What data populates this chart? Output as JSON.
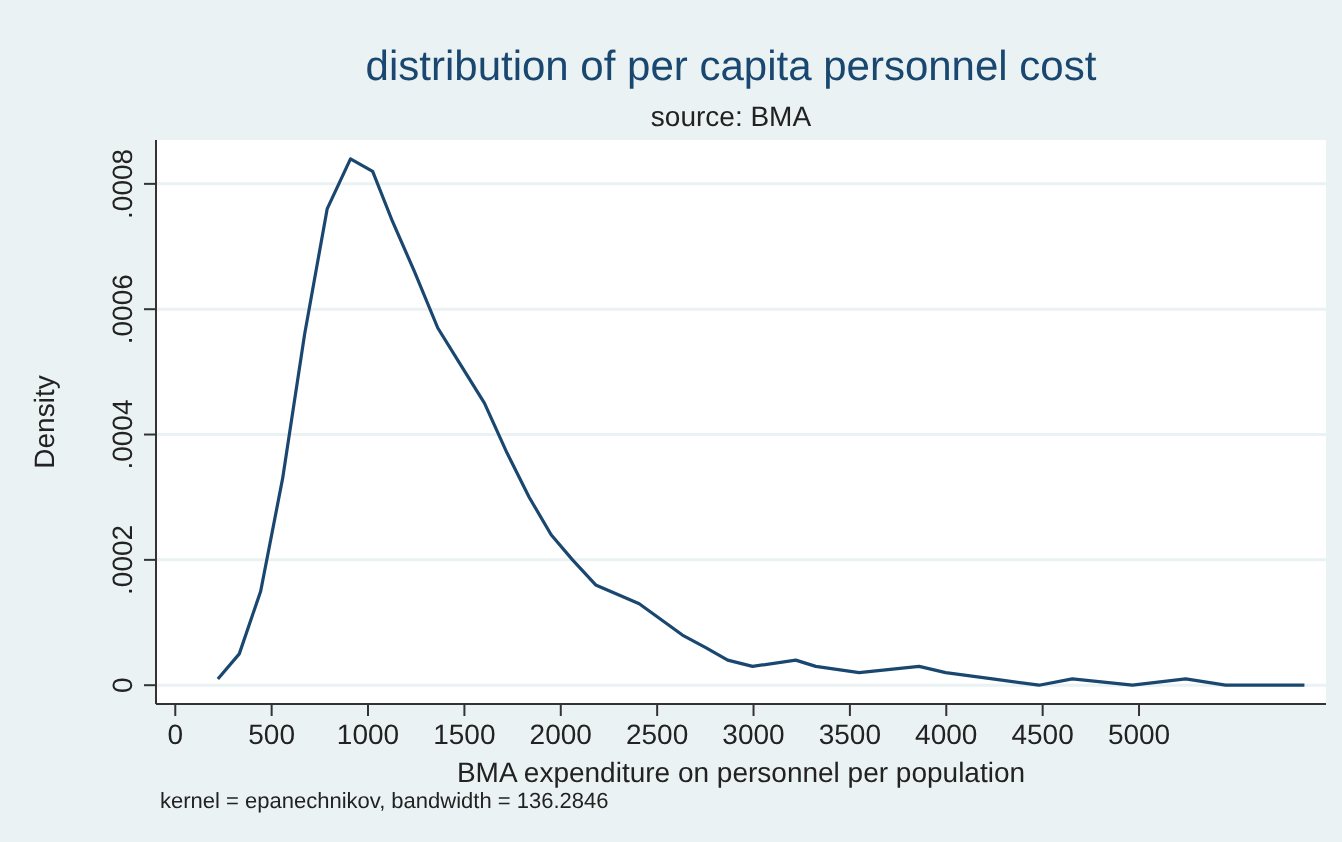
{
  "chart_data": {
    "type": "line",
    "title": "distribution of per capita personnel cost",
    "subtitle": "source: BMA",
    "xlabel": "BMA expenditure on personnel per population",
    "ylabel": "Density",
    "annotations": [
      "kernel = epanechnikov, bandwidth = 136.2846"
    ],
    "x": [
      221,
      332,
      443,
      557,
      671,
      788,
      909,
      1024,
      1127,
      1241,
      1362,
      1483,
      1604,
      1722,
      1836,
      1950,
      2061,
      2181,
      2407,
      2631,
      2752,
      2866,
      2995,
      3219,
      3323,
      3548,
      3859,
      3997,
      4240,
      4481,
      4654,
      4966,
      5242,
      5449,
      5726,
      5858
    ],
    "series": [
      {
        "color": "#1a476f",
        "values": [
          1e-05,
          5e-05,
          0.00015,
          0.00033,
          0.00056,
          0.00076,
          0.00084,
          0.00082,
          0.00074,
          0.00066,
          0.00057,
          0.00051,
          0.00045,
          0.00037,
          0.0003,
          0.00024,
          0.0002,
          0.00016,
          0.00013,
          8e-05,
          6e-05,
          4e-05,
          3e-05,
          4e-05,
          3e-05,
          2e-05,
          3e-05,
          2e-05,
          1e-05,
          0,
          1e-05,
          0,
          1e-05,
          0,
          0,
          0
        ]
      }
    ],
    "xlim": [
      -100,
      5970
    ],
    "xticks": [
      0,
      500,
      1000,
      1500,
      2000,
      2500,
      3000,
      3500,
      4000,
      4500,
      5000
    ],
    "ylim": [
      -3e-05,
      0.00087
    ],
    "yticks": [
      {
        "value": 0,
        "label": "0"
      },
      {
        "value": 0.0002,
        "label": ".0002"
      },
      {
        "value": 0.0004,
        "label": ".0004"
      },
      {
        "value": 0.0006,
        "label": ".0006"
      },
      {
        "value": 0.0008,
        "label": ".0008"
      }
    ],
    "grid": "y",
    "legend": false,
    "marker": "none",
    "line_style": "solid"
  }
}
